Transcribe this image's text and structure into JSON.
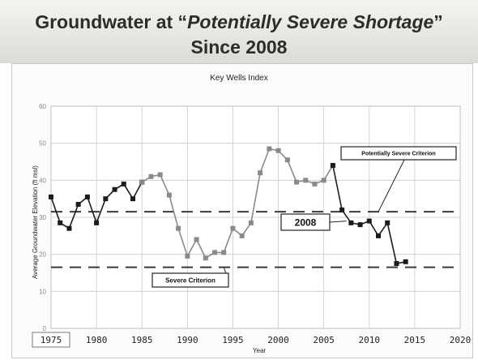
{
  "header": {
    "title_prefix": "Groundwater at “",
    "title_emphasis": "Potentially Severe Shortage",
    "title_suffix": "”",
    "subtitle": "Since 2008"
  },
  "colors": {
    "gray_series": "#8a8a8a",
    "dark_series": "#1c1c1c",
    "criterion_line": "#3a3a3a",
    "gridline": "#c9c9c9"
  },
  "chart_data": {
    "type": "line",
    "title": "Key Wells Index",
    "xlabel": "Year",
    "ylabel": "Average Groundwater Elevation (ft msl)",
    "xlim": [
      1975,
      2020
    ],
    "ylim": [
      0,
      60
    ],
    "x_ticks": [
      1975,
      1980,
      1985,
      1990,
      1995,
      2000,
      2005,
      2010,
      2015,
      2020
    ],
    "y_ticks": [
      0,
      10,
      20,
      30,
      40,
      50,
      60
    ],
    "grid": true,
    "series": [
      {
        "style": "dark",
        "x": [
          1975,
          1976,
          1977,
          1978,
          1979,
          1980,
          1981,
          1982,
          1983,
          1984,
          1985
        ],
        "values": [
          35.5,
          28.5,
          27,
          33.5,
          35.5,
          28.5,
          35,
          37.5,
          39,
          35,
          39.5
        ]
      },
      {
        "style": "gray",
        "x": [
          1985,
          1986,
          1987,
          1988,
          1989,
          1990,
          1991,
          1992,
          1993,
          1994,
          1995,
          1996,
          1997,
          1998,
          1999,
          2000,
          2001,
          2002,
          2003,
          2004,
          2005,
          2006
        ],
        "values": [
          39.5,
          41,
          41.5,
          36,
          27,
          19.5,
          24,
          19,
          20.5,
          20.5,
          27,
          25,
          28.5,
          42,
          48.5,
          48,
          45.5,
          39.5,
          40,
          39,
          40,
          44
        ]
      },
      {
        "style": "dark",
        "x": [
          2006,
          2007,
          2008,
          2009,
          2010,
          2011,
          2012,
          2013,
          2014
        ],
        "values": [
          44,
          32,
          28.5,
          28,
          29,
          25,
          28.5,
          17.5,
          18
        ]
      }
    ],
    "reference_lines": [
      {
        "name": "Potentially Severe Criterion",
        "value": 31.5
      },
      {
        "name": "Severe Criterion",
        "value": 16.5
      }
    ],
    "annotations": [
      {
        "text": "Potentially Severe Criterion",
        "points_to_year": 2011,
        "points_to_value": 31.5
      },
      {
        "text": "2008",
        "points_to_year": 2007.5,
        "points_to_value": 29
      },
      {
        "text": "Severe Criterion",
        "points_to_year": 1994,
        "points_to_value": 16.5
      }
    ]
  }
}
